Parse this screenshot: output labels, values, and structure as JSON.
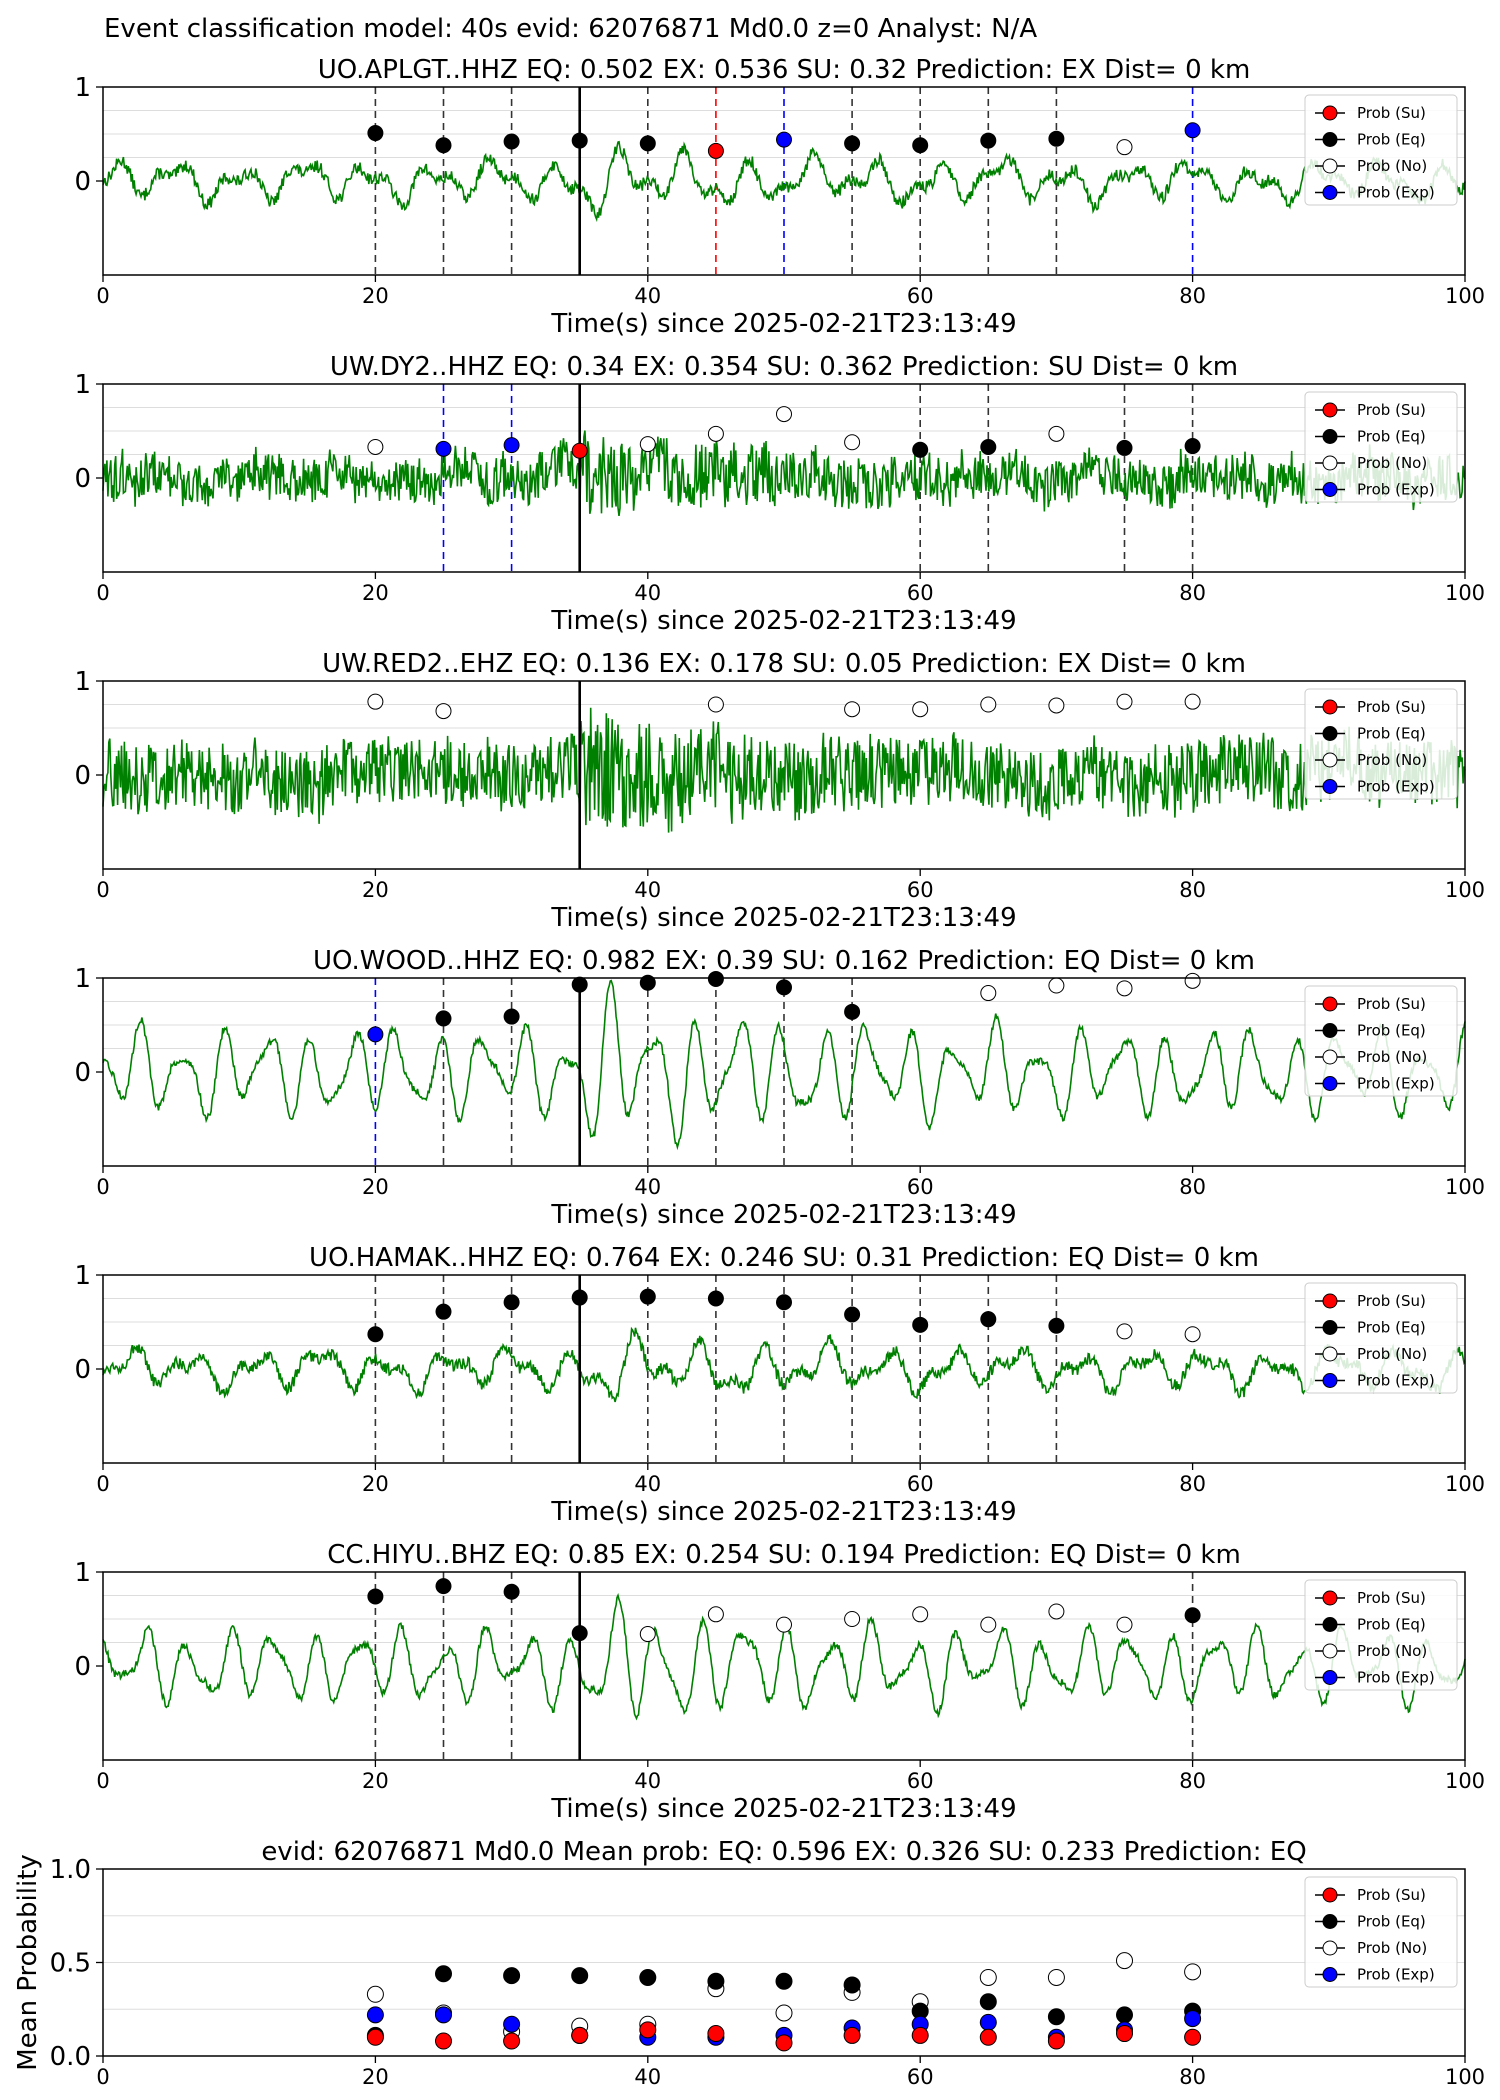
{
  "suptitle": "Event classification model: 40s evid: 62076871 Md0.0 z=0 Analyst: N/A",
  "legend_labels": [
    "Prob (Su)",
    "Prob (Eq)",
    "Prob (No)",
    "Prob (Exp)"
  ],
  "colors": {
    "waveform": "#008000",
    "su": "#ff0000",
    "eq": "#000000",
    "no": "#ffffff",
    "exp": "#0000ff",
    "grid": "#dddddd"
  },
  "chart_data": [
    {
      "type": "line",
      "station": "UO.APLGT..HHZ",
      "title": "UO.APLGT..HHZ   EQ: 0.502  EX: 0.536  SU: 0.32   Prediction: EX    Dist= 0 km",
      "xlabel": "Time(s) since 2025-02-21T23:13:49",
      "xlim": [
        0,
        100
      ],
      "ylim": [
        -1,
        1
      ],
      "xticks": [
        0,
        20,
        40,
        60,
        80,
        100
      ],
      "yticks": [
        0,
        1
      ],
      "grid": "y",
      "arrival_time": 35,
      "amplitude": 0.3,
      "style": "lowfreq",
      "points": [
        {
          "t": 20,
          "p": 0.51,
          "c": "eq"
        },
        {
          "t": 25,
          "p": 0.38,
          "c": "eq"
        },
        {
          "t": 30,
          "p": 0.42,
          "c": "eq"
        },
        {
          "t": 35,
          "p": 0.43,
          "c": "eq"
        },
        {
          "t": 40,
          "p": 0.4,
          "c": "eq"
        },
        {
          "t": 45,
          "p": 0.32,
          "c": "su"
        },
        {
          "t": 50,
          "p": 0.44,
          "c": "exp"
        },
        {
          "t": 55,
          "p": 0.4,
          "c": "eq"
        },
        {
          "t": 60,
          "p": 0.38,
          "c": "eq"
        },
        {
          "t": 65,
          "p": 0.43,
          "c": "eq"
        },
        {
          "t": 70,
          "p": 0.45,
          "c": "eq"
        },
        {
          "t": 75,
          "p": 0.36,
          "c": "no"
        },
        {
          "t": 80,
          "p": 0.54,
          "c": "exp"
        }
      ]
    },
    {
      "type": "line",
      "station": "UW.DY2..HHZ",
      "title": "UW.DY2..HHZ   EQ: 0.34  EX: 0.354  SU: 0.362   Prediction: SU    Dist= 0 km",
      "xlabel": "Time(s) since 2025-02-21T23:13:49",
      "xlim": [
        0,
        100
      ],
      "ylim": [
        -1,
        1
      ],
      "xticks": [
        0,
        20,
        40,
        60,
        80,
        100
      ],
      "yticks": [
        0,
        1
      ],
      "grid": "y",
      "arrival_time": 35,
      "amplitude": 0.3,
      "style": "noise",
      "points": [
        {
          "t": 20,
          "p": 0.33,
          "c": "no"
        },
        {
          "t": 25,
          "p": 0.31,
          "c": "exp"
        },
        {
          "t": 30,
          "p": 0.35,
          "c": "exp"
        },
        {
          "t": 35,
          "p": 0.29,
          "c": "su"
        },
        {
          "t": 40,
          "p": 0.36,
          "c": "no"
        },
        {
          "t": 45,
          "p": 0.47,
          "c": "no"
        },
        {
          "t": 50,
          "p": 0.68,
          "c": "no"
        },
        {
          "t": 55,
          "p": 0.38,
          "c": "no"
        },
        {
          "t": 60,
          "p": 0.3,
          "c": "eq"
        },
        {
          "t": 65,
          "p": 0.33,
          "c": "eq"
        },
        {
          "t": 70,
          "p": 0.47,
          "c": "no"
        },
        {
          "t": 75,
          "p": 0.32,
          "c": "eq"
        },
        {
          "t": 80,
          "p": 0.34,
          "c": "eq"
        }
      ]
    },
    {
      "type": "line",
      "station": "UW.RED2..EHZ",
      "title": "UW.RED2..EHZ   EQ: 0.136  EX: 0.178  SU: 0.05   Prediction: EX    Dist= 0 km",
      "xlabel": "Time(s) since 2025-02-21T23:13:49",
      "xlim": [
        0,
        100
      ],
      "ylim": [
        -1,
        1
      ],
      "xticks": [
        0,
        20,
        40,
        60,
        80,
        100
      ],
      "yticks": [
        0,
        1
      ],
      "grid": "y",
      "arrival_time": 35,
      "amplitude": 0.45,
      "style": "noise",
      "points": [
        {
          "t": 20,
          "p": 0.78,
          "c": "no"
        },
        {
          "t": 25,
          "p": 0.68,
          "c": "no"
        },
        {
          "t": 45,
          "p": 0.75,
          "c": "no"
        },
        {
          "t": 55,
          "p": 0.7,
          "c": "no"
        },
        {
          "t": 60,
          "p": 0.7,
          "c": "no"
        },
        {
          "t": 65,
          "p": 0.75,
          "c": "no"
        },
        {
          "t": 70,
          "p": 0.74,
          "c": "no"
        },
        {
          "t": 75,
          "p": 0.78,
          "c": "no"
        },
        {
          "t": 80,
          "p": 0.78,
          "c": "no"
        }
      ]
    },
    {
      "type": "line",
      "station": "UO.WOOD..HHZ",
      "title": "UO.WOOD..HHZ   EQ: 0.982  EX: 0.39  SU: 0.162   Prediction: EQ    Dist= 0 km",
      "xlabel": "Time(s) since 2025-02-21T23:13:49",
      "xlim": [
        0,
        100
      ],
      "ylim": [
        -1,
        1
      ],
      "xticks": [
        0,
        20,
        40,
        60,
        80,
        100
      ],
      "yticks": [
        0,
        1
      ],
      "grid": "y",
      "arrival_time": 35,
      "amplitude": 0.6,
      "style": "osc",
      "points": [
        {
          "t": 20,
          "p": 0.4,
          "c": "exp"
        },
        {
          "t": 25,
          "p": 0.57,
          "c": "eq"
        },
        {
          "t": 30,
          "p": 0.59,
          "c": "eq"
        },
        {
          "t": 35,
          "p": 0.93,
          "c": "eq"
        },
        {
          "t": 40,
          "p": 0.95,
          "c": "eq"
        },
        {
          "t": 45,
          "p": 0.99,
          "c": "eq"
        },
        {
          "t": 50,
          "p": 0.9,
          "c": "eq"
        },
        {
          "t": 55,
          "p": 0.64,
          "c": "eq"
        },
        {
          "t": 65,
          "p": 0.84,
          "c": "no"
        },
        {
          "t": 70,
          "p": 0.92,
          "c": "no"
        },
        {
          "t": 75,
          "p": 0.89,
          "c": "no"
        },
        {
          "t": 80,
          "p": 0.97,
          "c": "no"
        }
      ]
    },
    {
      "type": "line",
      "station": "UO.HAMAK..HHZ",
      "title": "UO.HAMAK..HHZ   EQ: 0.764  EX: 0.246  SU: 0.31   Prediction: EQ    Dist= 0 km",
      "xlabel": "Time(s) since 2025-02-21T23:13:49",
      "xlim": [
        0,
        100
      ],
      "ylim": [
        -1,
        1
      ],
      "xticks": [
        0,
        20,
        40,
        60,
        80,
        100
      ],
      "yticks": [
        0,
        1
      ],
      "grid": "y",
      "arrival_time": 35,
      "amplitude": 0.3,
      "style": "lowfreq",
      "points": [
        {
          "t": 20,
          "p": 0.37,
          "c": "eq"
        },
        {
          "t": 25,
          "p": 0.61,
          "c": "eq"
        },
        {
          "t": 30,
          "p": 0.71,
          "c": "eq"
        },
        {
          "t": 35,
          "p": 0.76,
          "c": "eq"
        },
        {
          "t": 40,
          "p": 0.77,
          "c": "eq"
        },
        {
          "t": 45,
          "p": 0.75,
          "c": "eq"
        },
        {
          "t": 50,
          "p": 0.71,
          "c": "eq"
        },
        {
          "t": 55,
          "p": 0.58,
          "c": "eq"
        },
        {
          "t": 60,
          "p": 0.47,
          "c": "eq"
        },
        {
          "t": 65,
          "p": 0.53,
          "c": "eq"
        },
        {
          "t": 70,
          "p": 0.46,
          "c": "eq"
        },
        {
          "t": 75,
          "p": 0.4,
          "c": "no"
        },
        {
          "t": 80,
          "p": 0.37,
          "c": "no"
        }
      ]
    },
    {
      "type": "line",
      "station": "CC.HIYU..BHZ",
      "title": "CC.HIYU..BHZ   EQ: 0.85  EX: 0.254  SU: 0.194   Prediction: EQ    Dist= 0 km",
      "xlabel": "Time(s) since 2025-02-21T23:13:49",
      "xlim": [
        0,
        100
      ],
      "ylim": [
        -1,
        1
      ],
      "xticks": [
        0,
        20,
        40,
        60,
        80,
        100
      ],
      "yticks": [
        0,
        1
      ],
      "grid": "y",
      "arrival_time": 35,
      "amplitude": 0.5,
      "style": "osc",
      "points": [
        {
          "t": 20,
          "p": 0.74,
          "c": "eq"
        },
        {
          "t": 25,
          "p": 0.85,
          "c": "eq"
        },
        {
          "t": 30,
          "p": 0.79,
          "c": "eq"
        },
        {
          "t": 35,
          "p": 0.35,
          "c": "eq"
        },
        {
          "t": 40,
          "p": 0.34,
          "c": "no"
        },
        {
          "t": 45,
          "p": 0.55,
          "c": "no"
        },
        {
          "t": 50,
          "p": 0.44,
          "c": "no"
        },
        {
          "t": 55,
          "p": 0.5,
          "c": "no"
        },
        {
          "t": 60,
          "p": 0.55,
          "c": "no"
        },
        {
          "t": 65,
          "p": 0.44,
          "c": "no"
        },
        {
          "t": 70,
          "p": 0.58,
          "c": "no"
        },
        {
          "t": 75,
          "p": 0.44,
          "c": "no"
        },
        {
          "t": 80,
          "p": 0.54,
          "c": "eq"
        }
      ]
    },
    {
      "type": "scatter",
      "title": "evid: 62076871  Md0.0   Mean prob:   EQ: 0.596  EX: 0.326  SU: 0.233   Prediction: EQ",
      "ylabel": "Mean Probability",
      "xlim": [
        0,
        100
      ],
      "ylim": [
        0,
        1
      ],
      "xticks": [
        0,
        20,
        40,
        60,
        80,
        100
      ],
      "yticks": [
        0,
        0.5,
        1
      ],
      "ytick_labels": [
        "0.0",
        "0.5",
        "1.0"
      ],
      "grid": "y",
      "x": [
        20,
        25,
        30,
        35,
        40,
        45,
        50,
        55,
        60,
        65,
        70,
        75,
        80
      ],
      "series": [
        {
          "key": "no",
          "values": [
            0.33,
            0.23,
            0.13,
            0.16,
            0.17,
            0.36,
            0.23,
            0.34,
            0.29,
            0.42,
            0.42,
            0.51,
            0.45
          ]
        },
        {
          "key": "eq",
          "values": [
            0.11,
            0.44,
            0.43,
            0.43,
            0.42,
            0.4,
            0.4,
            0.38,
            0.24,
            0.29,
            0.21,
            0.22,
            0.24
          ]
        },
        {
          "key": "exp",
          "values": [
            0.22,
            0.22,
            0.17,
            0.11,
            0.1,
            0.1,
            0.11,
            0.15,
            0.17,
            0.18,
            0.1,
            0.14,
            0.2
          ]
        },
        {
          "key": "su",
          "values": [
            0.1,
            0.08,
            0.08,
            0.11,
            0.14,
            0.12,
            0.07,
            0.11,
            0.11,
            0.1,
            0.08,
            0.12,
            0.1
          ]
        }
      ]
    }
  ]
}
